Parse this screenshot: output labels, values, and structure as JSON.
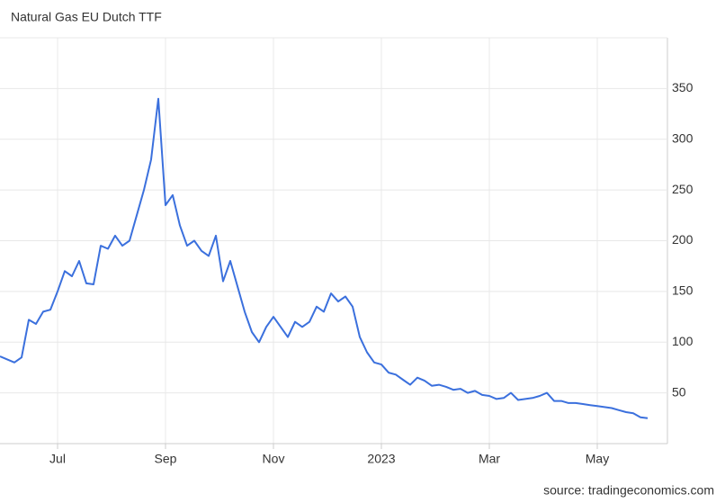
{
  "chart_data": {
    "type": "line",
    "title": "Natural Gas EU Dutch TTF",
    "source": "source: tradingeconomics.com",
    "categories": [
      null,
      null,
      null,
      null,
      null,
      null,
      null,
      null,
      "Jul",
      null,
      null,
      null,
      null,
      null,
      null,
      null,
      null,
      null,
      null,
      null,
      null,
      null,
      null,
      "Sep",
      null,
      null,
      null,
      null,
      null,
      null,
      null,
      null,
      null,
      null,
      null,
      null,
      null,
      null,
      "Nov",
      null,
      null,
      null,
      null,
      null,
      null,
      null,
      null,
      null,
      null,
      null,
      null,
      null,
      null,
      "2023",
      null,
      null,
      null,
      null,
      null,
      null,
      null,
      null,
      null,
      null,
      null,
      null,
      null,
      null,
      "Mar",
      null,
      null,
      null,
      null,
      null,
      null,
      null,
      null,
      null,
      null,
      null,
      null,
      null,
      null,
      "May",
      null,
      null,
      null,
      null,
      null,
      null,
      null
    ],
    "series": [
      {
        "color": "#3b70dd",
        "values": [
          86,
          83,
          80,
          85,
          122,
          118,
          130,
          132,
          150,
          170,
          165,
          180,
          158,
          157,
          195,
          192,
          205,
          195,
          200,
          225,
          250,
          280,
          340,
          235,
          245,
          215,
          195,
          200,
          190,
          185,
          205,
          160,
          180,
          155,
          130,
          110,
          100,
          115,
          125,
          115,
          105,
          120,
          115,
          120,
          135,
          130,
          148,
          140,
          145,
          135,
          105,
          90,
          80,
          78,
          70,
          68,
          63,
          58,
          65,
          62,
          57,
          58,
          56,
          53,
          54,
          50,
          52,
          48,
          47,
          44,
          45,
          50,
          43,
          44,
          45,
          47,
          50,
          42,
          42,
          40,
          40,
          39,
          38,
          37,
          36,
          35,
          33,
          31,
          30,
          26,
          25
        ]
      }
    ],
    "ylim": [
      0,
      400
    ],
    "yticks": [
      50,
      100,
      150,
      200,
      250,
      300,
      350
    ],
    "grid": true
  }
}
